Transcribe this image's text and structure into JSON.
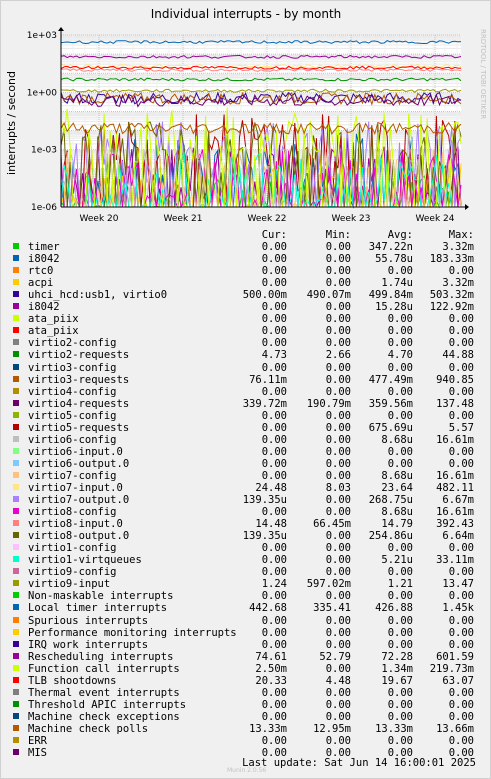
{
  "chart_data": {
    "type": "line",
    "title": "Individual interrupts - by month",
    "ylabel": "interrupts / second",
    "yscale": "log",
    "ylim": [
      1e-06,
      1000
    ],
    "y_ticks": [
      "1e+03",
      "1e+00",
      "1e-03",
      "1e-06"
    ],
    "x_ticks": [
      "Week 20",
      "Week 21",
      "Week 22",
      "Week 23",
      "Week 24"
    ],
    "watermark": "RRDTOOL / TOBI OETIKER",
    "grid": true,
    "columns": [
      "Cur:",
      "Min:",
      "Avg:",
      "Max:"
    ],
    "series": [
      {
        "name": "timer",
        "color": "#00cc00",
        "cur": "0.00",
        "min": "0.00",
        "avg": "347.22n",
        "max": "3.32m"
      },
      {
        "name": "i8042",
        "color": "#0066b3",
        "cur": "0.00",
        "min": "0.00",
        "avg": "55.78u",
        "max": "183.33m"
      },
      {
        "name": "rtc0",
        "color": "#ff8000",
        "cur": "0.00",
        "min": "0.00",
        "avg": "0.00",
        "max": "0.00"
      },
      {
        "name": "acpi",
        "color": "#ffcc00",
        "cur": "0.00",
        "min": "0.00",
        "avg": "1.74u",
        "max": "3.32m"
      },
      {
        "name": "uhci_hcd:usb1, virtio0",
        "color": "#330099",
        "cur": "500.00m",
        "min": "490.07m",
        "avg": "499.84m",
        "max": "503.32m"
      },
      {
        "name": "i8042",
        "color": "#990099",
        "cur": "0.00",
        "min": "0.00",
        "avg": "15.28u",
        "max": "122.92m"
      },
      {
        "name": "ata_piix",
        "color": "#ccff00",
        "cur": "0.00",
        "min": "0.00",
        "avg": "0.00",
        "max": "0.00"
      },
      {
        "name": "ata_piix",
        "color": "#ff0000",
        "cur": "0.00",
        "min": "0.00",
        "avg": "0.00",
        "max": "0.00"
      },
      {
        "name": "virtio2-config",
        "color": "#808080",
        "cur": "0.00",
        "min": "0.00",
        "avg": "0.00",
        "max": "0.00"
      },
      {
        "name": "virtio2-requests",
        "color": "#008f00",
        "cur": "4.73",
        "min": "2.66",
        "avg": "4.70",
        "max": "44.88"
      },
      {
        "name": "virtio3-config",
        "color": "#00487d",
        "cur": "0.00",
        "min": "0.00",
        "avg": "0.00",
        "max": "0.00"
      },
      {
        "name": "virtio3-requests",
        "color": "#b35a00",
        "cur": "76.11m",
        "min": "0.00",
        "avg": "477.49m",
        "max": "940.85"
      },
      {
        "name": "virtio4-config",
        "color": "#b38f00",
        "cur": "0.00",
        "min": "0.00",
        "avg": "0.00",
        "max": "0.00"
      },
      {
        "name": "virtio4-requests",
        "color": "#6b006b",
        "cur": "339.72m",
        "min": "190.79m",
        "avg": "359.56m",
        "max": "137.48"
      },
      {
        "name": "virtio5-config",
        "color": "#8fb300",
        "cur": "0.00",
        "min": "0.00",
        "avg": "0.00",
        "max": "0.00"
      },
      {
        "name": "virtio5-requests",
        "color": "#b30000",
        "cur": "0.00",
        "min": "0.00",
        "avg": "675.69u",
        "max": "5.57"
      },
      {
        "name": "virtio6-config",
        "color": "#bebebe",
        "cur": "0.00",
        "min": "0.00",
        "avg": "8.68u",
        "max": "16.61m"
      },
      {
        "name": "virtio6-input.0",
        "color": "#80ff80",
        "cur": "0.00",
        "min": "0.00",
        "avg": "0.00",
        "max": "0.00"
      },
      {
        "name": "virtio6-output.0",
        "color": "#80c9ff",
        "cur": "0.00",
        "min": "0.00",
        "avg": "0.00",
        "max": "0.00"
      },
      {
        "name": "virtio7-config",
        "color": "#ffc080",
        "cur": "0.00",
        "min": "0.00",
        "avg": "8.68u",
        "max": "16.61m"
      },
      {
        "name": "virtio7-input.0",
        "color": "#ffe680",
        "cur": "24.48",
        "min": "8.03",
        "avg": "23.64",
        "max": "482.11"
      },
      {
        "name": "virtio7-output.0",
        "color": "#aa80ff",
        "cur": "139.35u",
        "min": "0.00",
        "avg": "268.75u",
        "max": "6.67m"
      },
      {
        "name": "virtio8-config",
        "color": "#ee00cc",
        "cur": "0.00",
        "min": "0.00",
        "avg": "8.68u",
        "max": "16.61m"
      },
      {
        "name": "virtio8-input.0",
        "color": "#ff8080",
        "cur": "14.48",
        "min": "66.45m",
        "avg": "14.79",
        "max": "392.43"
      },
      {
        "name": "virtio8-output.0",
        "color": "#666600",
        "cur": "139.35u",
        "min": "0.00",
        "avg": "254.86u",
        "max": "6.64m"
      },
      {
        "name": "virtio1-config",
        "color": "#ffbfff",
        "cur": "0.00",
        "min": "0.00",
        "avg": "0.00",
        "max": "0.00"
      },
      {
        "name": "virtio1-virtqueues",
        "color": "#00ffcc",
        "cur": "0.00",
        "min": "0.00",
        "avg": "5.21u",
        "max": "33.11m"
      },
      {
        "name": "virtio9-config",
        "color": "#cc6699",
        "cur": "0.00",
        "min": "0.00",
        "avg": "0.00",
        "max": "0.00"
      },
      {
        "name": "virtio9-input",
        "color": "#999900",
        "cur": "1.24",
        "min": "597.02m",
        "avg": "1.21",
        "max": "13.47"
      },
      {
        "name": "Non-maskable interrupts",
        "color": "#00cc00",
        "cur": "0.00",
        "min": "0.00",
        "avg": "0.00",
        "max": "0.00"
      },
      {
        "name": "Local timer interrupts",
        "color": "#0066b3",
        "cur": "442.68",
        "min": "335.41",
        "avg": "426.88",
        "max": "1.45k"
      },
      {
        "name": "Spurious interrupts",
        "color": "#ff8000",
        "cur": "0.00",
        "min": "0.00",
        "avg": "0.00",
        "max": "0.00"
      },
      {
        "name": "Performance monitoring interrupts",
        "color": "#ffcc00",
        "cur": "0.00",
        "min": "0.00",
        "avg": "0.00",
        "max": "0.00"
      },
      {
        "name": "IRQ work interrupts",
        "color": "#330099",
        "cur": "0.00",
        "min": "0.00",
        "avg": "0.00",
        "max": "0.00"
      },
      {
        "name": "Rescheduling interrupts",
        "color": "#990099",
        "cur": "74.61",
        "min": "52.79",
        "avg": "72.28",
        "max": "601.59"
      },
      {
        "name": "Function call interrupts",
        "color": "#ccff00",
        "cur": "2.50m",
        "min": "0.00",
        "avg": "1.34m",
        "max": "219.73m"
      },
      {
        "name": "TLB shootdowns",
        "color": "#ff0000",
        "cur": "20.33",
        "min": "4.48",
        "avg": "19.67",
        "max": "63.07"
      },
      {
        "name": "Thermal event interrupts",
        "color": "#808080",
        "cur": "0.00",
        "min": "0.00",
        "avg": "0.00",
        "max": "0.00"
      },
      {
        "name": "Threshold APIC interrupts",
        "color": "#008f00",
        "cur": "0.00",
        "min": "0.00",
        "avg": "0.00",
        "max": "0.00"
      },
      {
        "name": "Machine check exceptions",
        "color": "#00487d",
        "cur": "0.00",
        "min": "0.00",
        "avg": "0.00",
        "max": "0.00"
      },
      {
        "name": "Machine check polls",
        "color": "#b35a00",
        "cur": "13.33m",
        "min": "12.95m",
        "avg": "13.33m",
        "max": "13.66m"
      },
      {
        "name": "ERR",
        "color": "#b38f00",
        "cur": "0.00",
        "min": "0.00",
        "avg": "0.00",
        "max": "0.00"
      },
      {
        "name": "MIS",
        "color": "#6b006b",
        "cur": "0.00",
        "min": "0.00",
        "avg": "0.00",
        "max": "0.00"
      }
    ]
  },
  "footer": {
    "last_update": "Last update:  Sat Jun 14 16:00:01 2025",
    "munin": "Munin 2.0.56"
  }
}
